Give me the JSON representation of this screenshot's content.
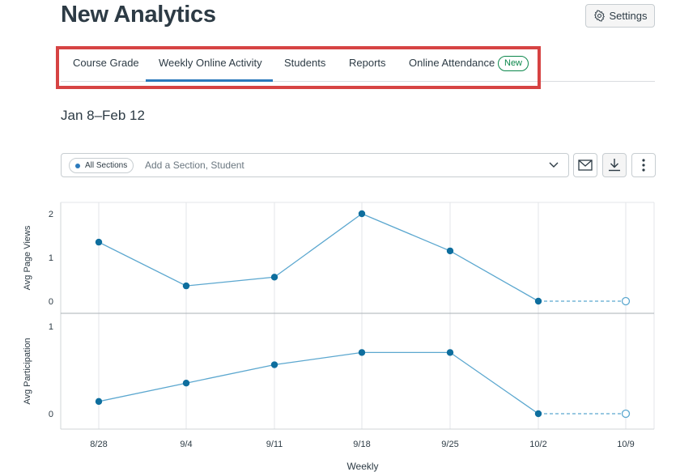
{
  "header": {
    "title": "New Analytics",
    "settings_label": "Settings"
  },
  "tabs": [
    {
      "label": "Course Grade",
      "active": false
    },
    {
      "label": "Weekly Online Activity",
      "active": true
    },
    {
      "label": "Students",
      "active": false
    },
    {
      "label": "Reports",
      "active": false
    },
    {
      "label": "Online Attendance",
      "active": false,
      "badge": "New"
    }
  ],
  "date_range": "Jan 8–Feb 12",
  "filter": {
    "pill_label": "All Sections",
    "placeholder": "Add a Section, Student"
  },
  "toolbar_icons": [
    "mail-icon",
    "download-icon",
    "more-vertical-icon"
  ],
  "colors": {
    "accent": "#2b7abc",
    "line": "#5ba7cf",
    "marker": "#0e6e9e",
    "highlight_border": "#d64343",
    "badge_green": "#0b874b"
  },
  "chart_data": [
    {
      "type": "line",
      "ylabel": "Avg Page Views",
      "categories": [
        "8/28",
        "9/4",
        "9/11",
        "9/18",
        "9/25",
        "10/2",
        "10/9"
      ],
      "values": [
        1.35,
        0.35,
        0.55,
        2.0,
        1.15,
        0,
        0
      ],
      "yticks": [
        0,
        1,
        2
      ],
      "ylim": [
        0,
        2
      ],
      "projected_last_point": true
    },
    {
      "type": "line",
      "ylabel": "Avg Participation",
      "categories": [
        "8/28",
        "9/4",
        "9/11",
        "9/18",
        "9/25",
        "10/2",
        "10/9"
      ],
      "values": [
        0.14,
        0.35,
        0.56,
        0.7,
        0.7,
        0,
        0
      ],
      "yticks": [
        0,
        1
      ],
      "ylim": [
        0,
        1
      ],
      "projected_last_point": true,
      "xlabel": "Weekly"
    }
  ]
}
